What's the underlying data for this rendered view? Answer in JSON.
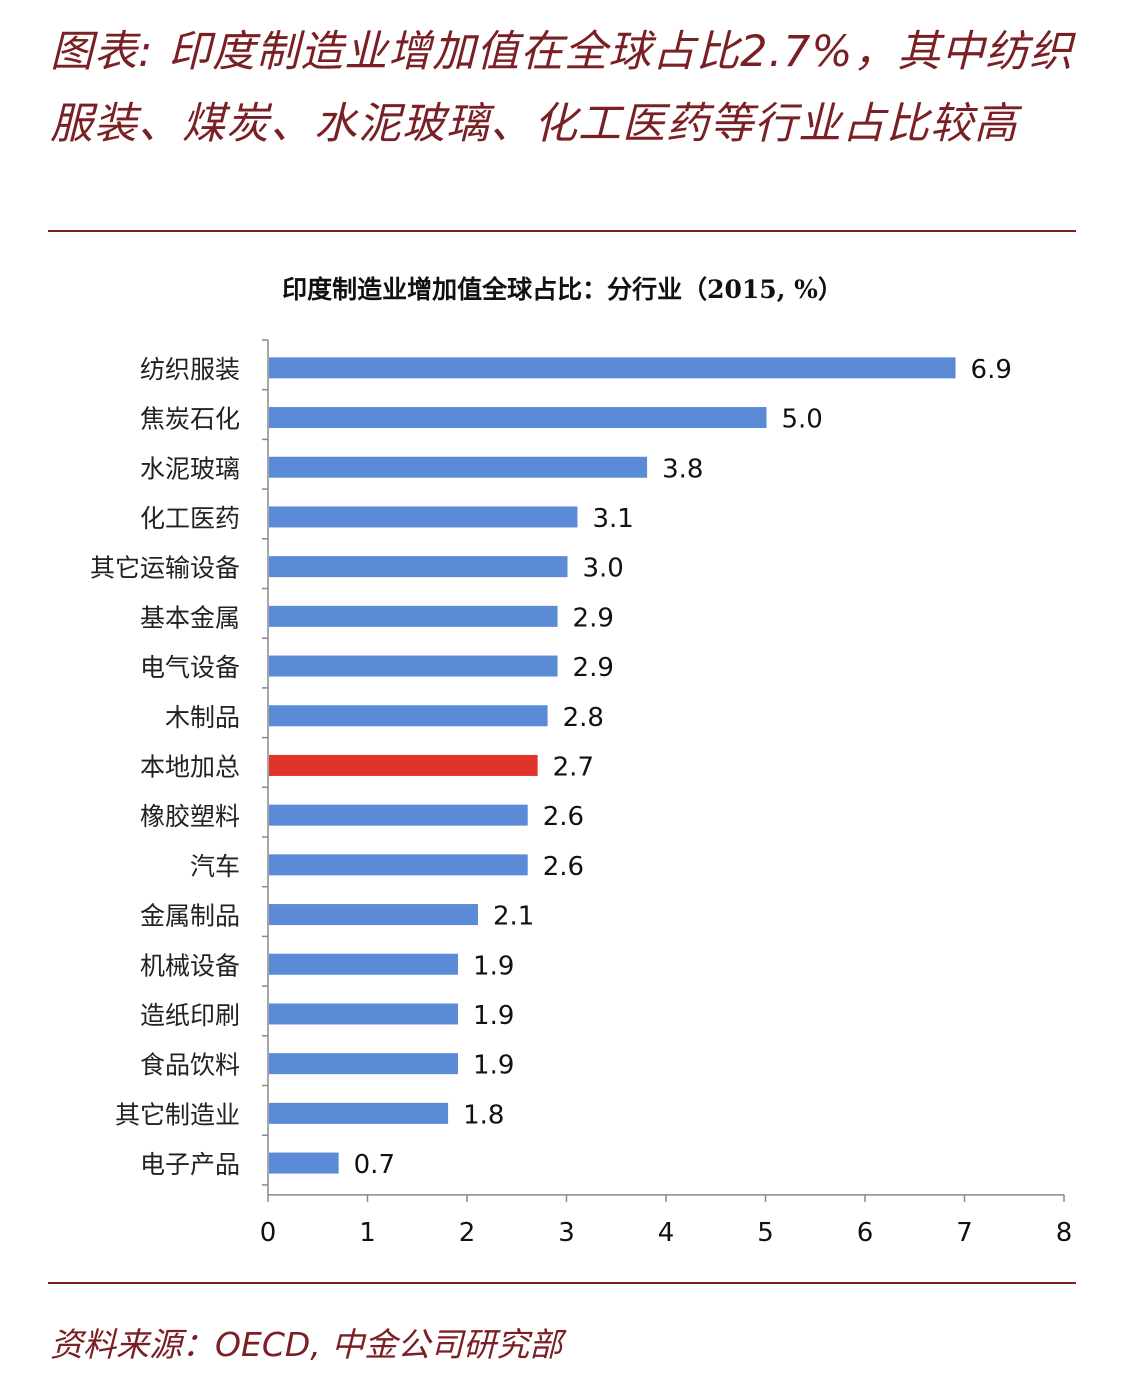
{
  "figure": {
    "title": "图表: 印度制造业增加值在全球占比2.7%，其中纺织服装、煤炭、水泥玻璃、化工医药等行业占比较高",
    "source": "资料来源：OECD, 中金公司研究部"
  },
  "chart_data": {
    "type": "bar",
    "orientation": "horizontal",
    "title": "印度制造业增加值全球占比：分行业（2015, %）",
    "categories": [
      "纺织服装",
      "焦炭石化",
      "水泥玻璃",
      "化工医药",
      "其它运输设备",
      "基本金属",
      "电气设备",
      "木制品",
      "本地加总",
      "橡胶塑料",
      "汽车",
      "金属制品",
      "机械设备",
      "造纸印刷",
      "食品饮料",
      "其它制造业",
      "电子产品"
    ],
    "values": [
      6.9,
      5.0,
      3.8,
      3.1,
      3.0,
      2.9,
      2.9,
      2.8,
      2.7,
      2.6,
      2.6,
      2.1,
      1.9,
      1.9,
      1.9,
      1.8,
      0.7
    ],
    "value_labels": [
      "6.9",
      "5.0",
      "3.8",
      "3.1",
      "3.0",
      "2.9",
      "2.9",
      "2.8",
      "2.7",
      "2.6",
      "2.6",
      "2.1",
      "1.9",
      "1.9",
      "1.9",
      "1.8",
      "0.7"
    ],
    "highlight": "本地加总",
    "xlim": [
      0,
      8
    ],
    "xticks": [
      "0",
      "1",
      "2",
      "3",
      "4",
      "5",
      "6",
      "7",
      "8"
    ],
    "xlabel": "",
    "ylabel": "",
    "grid": false,
    "legend": "none",
    "colors": {
      "bar": "#5b8bd6",
      "highlight": "#e0332a"
    }
  }
}
